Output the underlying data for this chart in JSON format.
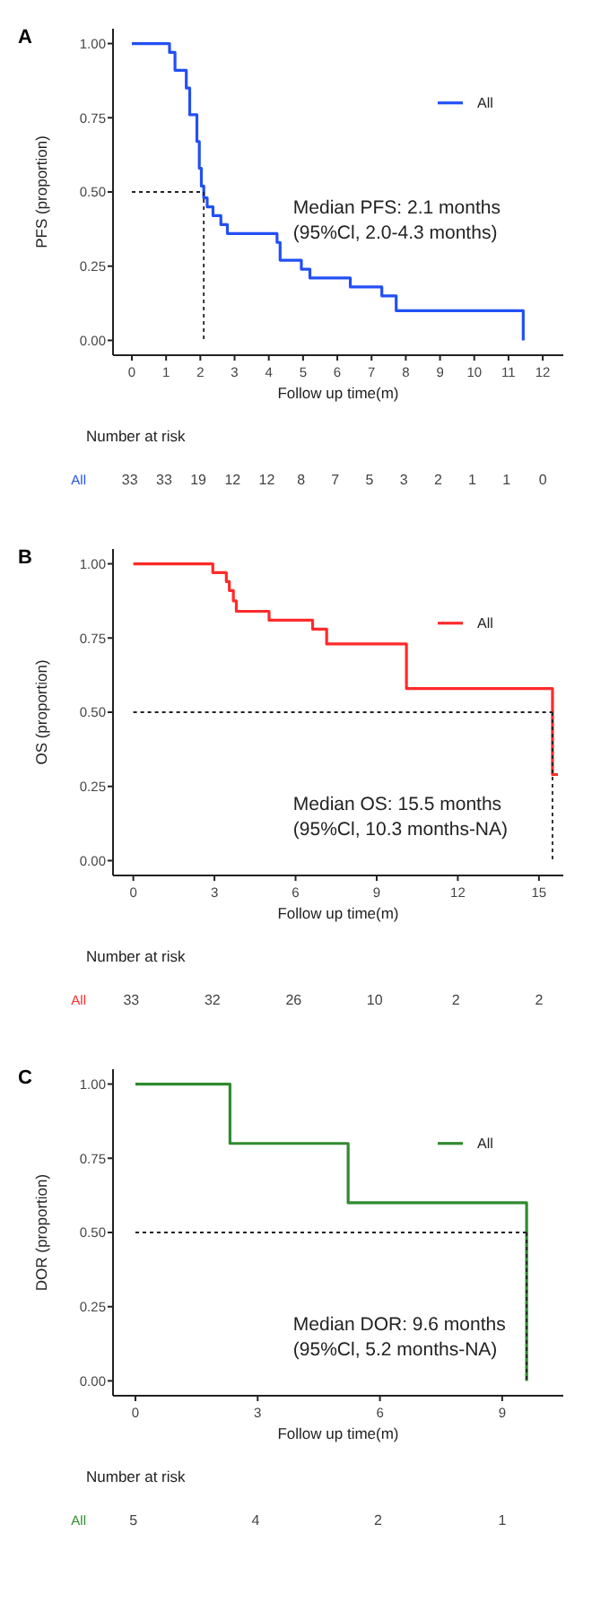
{
  "chart_data": [
    {
      "type": "step",
      "title": "A",
      "xlabel": "Follow up time(m)",
      "ylabel": "PFS (proportion)",
      "legend": "top right",
      "xlim": [
        -0.55,
        12.6
      ],
      "ylim": [
        -0.05,
        1.05
      ],
      "xticks": [
        0,
        1,
        2,
        3,
        4,
        5,
        6,
        7,
        8,
        9,
        10,
        11,
        12
      ],
      "yticks": [
        {
          "value": 0,
          "label": "0.00"
        },
        {
          "value": 0.25,
          "label": "0.25"
        },
        {
          "value": 0.5,
          "label": "0.50"
        },
        {
          "value": 0.75,
          "label": "0.75"
        },
        {
          "value": 1,
          "label": "1.00"
        }
      ],
      "series": [
        {
          "name": "All",
          "color": "#2250f5",
          "x": [
            0,
            1.1,
            1.26,
            1.59,
            1.69,
            1.9,
            1.97,
            2.03,
            2.1,
            2.2,
            2.37,
            2.6,
            2.79,
            4.24,
            4.33,
            4.95,
            5.2,
            6.38,
            7.3,
            7.72,
            11.43
          ],
          "values": [
            1,
            0.97,
            0.91,
            0.85,
            0.76,
            0.67,
            0.58,
            0.52,
            0.48,
            0.45,
            0.42,
            0.39,
            0.36,
            0.33,
            0.27,
            0.24,
            0.21,
            0.18,
            0.15,
            0.1,
            0
          ]
        }
      ],
      "ref_lines": [
        {
          "axis": "y",
          "value": 0.5
        },
        {
          "axis": "x",
          "value": 2.1
        }
      ],
      "annotations": [
        "Median PFS: 2.1 months",
        "(95%Cl, 2.0-4.3 months)",
        "Number at risk",
        "33 33 19 12 12 8 7 5 3 2 1 1 0"
      ]
    },
    {
      "type": "step",
      "title": "B",
      "xlabel": "Follow up time(m)",
      "ylabel": "OS (proportion)",
      "legend": "top right",
      "xlim": [
        -0.75,
        15.9
      ],
      "ylim": [
        -0.05,
        1.05
      ],
      "xticks": [
        0,
        3,
        6,
        9,
        12,
        15
      ],
      "yticks": [
        {
          "value": 0,
          "label": "0.00"
        },
        {
          "value": 0.25,
          "label": "0.25"
        },
        {
          "value": 0.5,
          "label": "0.50"
        },
        {
          "value": 0.75,
          "label": "0.75"
        },
        {
          "value": 1,
          "label": "1.00"
        }
      ],
      "series": [
        {
          "name": "All",
          "color": "#ff2a2a",
          "x": [
            0,
            2.94,
            3.44,
            3.55,
            3.7,
            3.81,
            4.06,
            5.02,
            6.63,
            7.15,
            10.1,
            15.5,
            15.7
          ],
          "values": [
            1,
            0.97,
            0.94,
            0.91,
            0.875,
            0.84,
            0.84,
            0.81,
            0.78,
            0.73,
            0.58,
            0.29,
            0.29
          ]
        }
      ],
      "ref_lines": [
        {
          "axis": "y",
          "value": 0.5
        },
        {
          "axis": "x",
          "value": 15.5
        }
      ],
      "annotations": [
        "Median OS: 15.5 months",
        "(95%Cl, 10.3 months-NA)",
        "Number at risk",
        "33 32 26 10 2 2"
      ]
    },
    {
      "type": "step",
      "title": "C",
      "xlabel": "Follow up time(m)",
      "ylabel": "DOR (proportion)",
      "legend": "top right",
      "xlim": [
        -0.55,
        10.5
      ],
      "ylim": [
        -0.05,
        1.05
      ],
      "xticks": [
        0,
        3,
        6,
        9
      ],
      "yticks": [
        {
          "value": 0,
          "label": "0.00"
        },
        {
          "value": 0.25,
          "label": "0.25"
        },
        {
          "value": 0.5,
          "label": "0.50"
        },
        {
          "value": 0.75,
          "label": "0.75"
        },
        {
          "value": 1,
          "label": "1.00"
        }
      ],
      "series": [
        {
          "name": "All",
          "color": "#2e8b2e",
          "x": [
            0,
            2.32,
            5.22,
            9.6
          ],
          "values": [
            1,
            0.8,
            0.6,
            0
          ]
        }
      ],
      "ref_lines": [
        {
          "axis": "y",
          "value": 0.5
        },
        {
          "axis": "x",
          "value": 9.6
        }
      ],
      "annotations": [
        "Median DOR: 9.6 months",
        "(95%Cl, 5.2 months-NA)",
        "Number at risk",
        "5 4 2 1"
      ]
    }
  ]
}
